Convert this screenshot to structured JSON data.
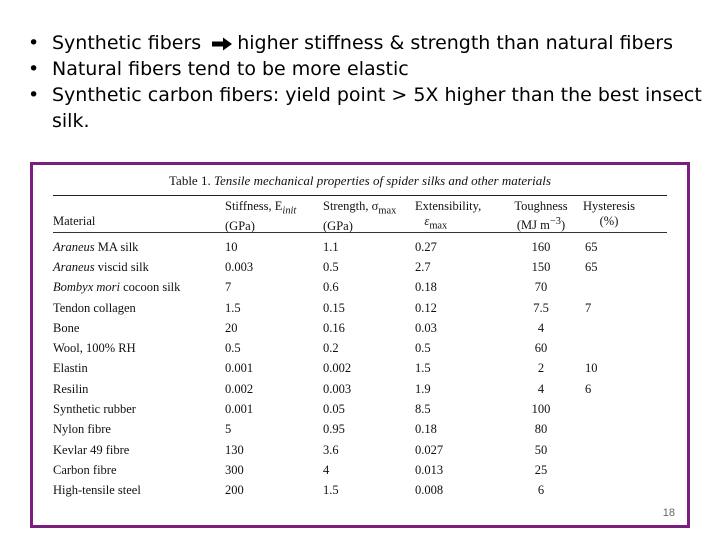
{
  "bullets": [
    {
      "before": "Synthetic fibers",
      "arrow": "right-arrow-icon",
      "after": "higher stiffness & strength than natural fibers"
    },
    {
      "before": "Natural fibers tend to be more elastic",
      "arrow": "",
      "after": ""
    },
    {
      "before": "Synthetic carbon fibers: yield point > 5X higher than the best insect silk.",
      "arrow": "",
      "after": ""
    }
  ],
  "table": {
    "caption_number": "Table 1.",
    "caption_title": "Tensile mechanical properties of spider silks and other materials",
    "headers": {
      "material": "Material",
      "stiffness": "Stiffness, E",
      "stiffness_sub": "init",
      "stiffness_unit": "(GPa)",
      "strength": "Strength, σ",
      "strength_sub": "max",
      "strength_unit": "(GPa)",
      "extensibility": "Extensibility,",
      "extensibility_sym": "ε",
      "extensibility_sub": "max",
      "toughness": "Toughness",
      "toughness_unit": "(MJ m",
      "toughness_exp": "−3",
      "toughness_close": ")",
      "hysteresis": "Hysteresis",
      "hysteresis_unit": "(%)"
    },
    "rows": [
      {
        "genus": "Araneus",
        "rest": " MA silk",
        "stiffness": "10",
        "strength": "1.1",
        "extensibility": "0.27",
        "toughness": "160",
        "hysteresis": "65"
      },
      {
        "genus": "Araneus",
        "rest": " viscid silk",
        "stiffness": "0.003",
        "strength": "0.5",
        "extensibility": "2.7",
        "toughness": "150",
        "hysteresis": "65"
      },
      {
        "genus": "Bombyx mori",
        "rest": " cocoon silk",
        "stiffness": "7",
        "strength": "0.6",
        "extensibility": "0.18",
        "toughness": "70",
        "hysteresis": ""
      },
      {
        "genus": "",
        "rest": "Tendon collagen",
        "stiffness": "1.5",
        "strength": "0.15",
        "extensibility": "0.12",
        "toughness": "7.5",
        "hysteresis": "7"
      },
      {
        "genus": "",
        "rest": "Bone",
        "stiffness": "20",
        "strength": "0.16",
        "extensibility": "0.03",
        "toughness": "4",
        "hysteresis": ""
      },
      {
        "genus": "",
        "rest": "Wool, 100% RH",
        "stiffness": "0.5",
        "strength": "0.2",
        "extensibility": "0.5",
        "toughness": "60",
        "hysteresis": ""
      },
      {
        "genus": "",
        "rest": "Elastin",
        "stiffness": "0.001",
        "strength": "0.002",
        "extensibility": "1.5",
        "toughness": "2",
        "hysteresis": "10"
      },
      {
        "genus": "",
        "rest": "Resilin",
        "stiffness": "0.002",
        "strength": "0.003",
        "extensibility": "1.9",
        "toughness": "4",
        "hysteresis": "6"
      },
      {
        "genus": "",
        "rest": "Synthetic rubber",
        "stiffness": "0.001",
        "strength": "0.05",
        "extensibility": "8.5",
        "toughness": "100",
        "hysteresis": ""
      },
      {
        "genus": "",
        "rest": "Nylon fibre",
        "stiffness": "5",
        "strength": "0.95",
        "extensibility": "0.18",
        "toughness": "80",
        "hysteresis": ""
      },
      {
        "genus": "",
        "rest": "Kevlar 49 fibre",
        "stiffness": "130",
        "strength": "3.6",
        "extensibility": "0.027",
        "toughness": "50",
        "hysteresis": ""
      },
      {
        "genus": "",
        "rest": "Carbon fibre",
        "stiffness": "300",
        "strength": "4",
        "extensibility": "0.013",
        "toughness": "25",
        "hysteresis": ""
      },
      {
        "genus": "",
        "rest": "High-tensile steel",
        "stiffness": "200",
        "strength": "1.5",
        "extensibility": "0.008",
        "toughness": "6",
        "hysteresis": ""
      }
    ]
  },
  "page_number": "18",
  "colors": {
    "frame": "#7a1f7d"
  }
}
